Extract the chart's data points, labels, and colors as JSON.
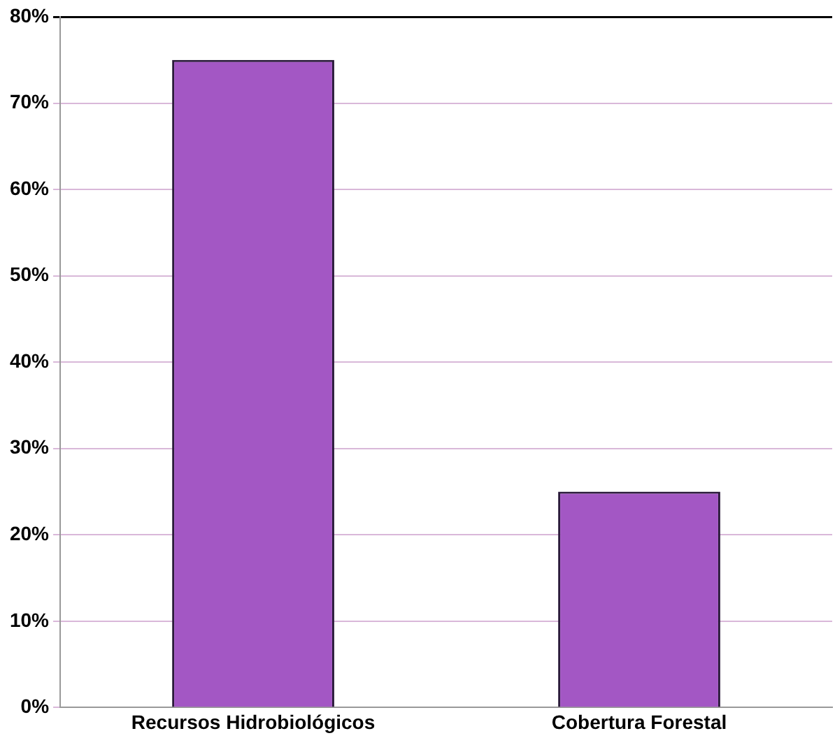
{
  "chart_data": {
    "type": "bar",
    "categories": [
      "Recursos Hidrobiológicos",
      "Cobertura Forestal"
    ],
    "values": [
      75,
      25
    ],
    "color": "#a357c4",
    "ylim": [
      0,
      80
    ],
    "yticks": [
      {
        "value": 0,
        "label": "0%"
      },
      {
        "value": 10,
        "label": "10%"
      },
      {
        "value": 20,
        "label": "20%"
      },
      {
        "value": 30,
        "label": "30%"
      },
      {
        "value": 40,
        "label": "40%"
      },
      {
        "value": 50,
        "label": "50%"
      },
      {
        "value": 60,
        "label": "60%"
      },
      {
        "value": 70,
        "label": "70%"
      },
      {
        "value": 80,
        "label": "80%"
      }
    ],
    "grid": "y",
    "legend": false
  }
}
